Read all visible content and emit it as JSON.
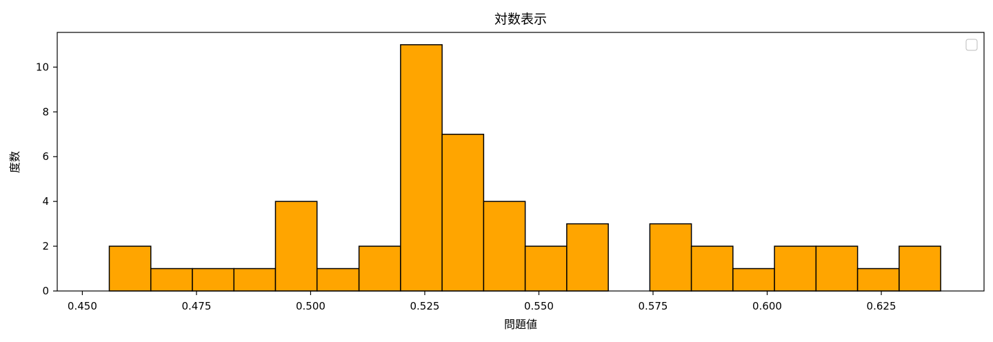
{
  "chart_data": {
    "type": "bar",
    "title": "対数表示",
    "xlabel": "問題値",
    "ylabel": "度数",
    "xlim": [
      0.4445,
      0.6475
    ],
    "ylim": [
      0,
      11.55
    ],
    "grid": false,
    "legend": {
      "placement": "top-right",
      "entries": []
    },
    "bar_color": "#FFA500",
    "edge_color": "#000000",
    "x_ticks": [
      0.45,
      0.475,
      0.5,
      0.525,
      0.55,
      0.575,
      0.6,
      0.625
    ],
    "x_tick_labels": [
      "0.450",
      "0.475",
      "0.500",
      "0.525",
      "0.550",
      "0.575",
      "0.600",
      "0.625"
    ],
    "y_ticks": [
      0,
      2,
      4,
      6,
      8,
      10
    ],
    "y_tick_labels": [
      "0",
      "2",
      "4",
      "6",
      "8",
      "10"
    ],
    "bin_edges": [
      0.4559,
      0.465,
      0.4741,
      0.4832,
      0.4923,
      0.5014,
      0.5106,
      0.5197,
      0.5288,
      0.5379,
      0.547,
      0.5561,
      0.5652,
      0.5743,
      0.5834,
      0.5925,
      0.6016,
      0.6107,
      0.6198,
      0.6289,
      0.638
    ],
    "values": [
      2,
      1,
      1,
      1,
      4,
      1,
      2,
      11,
      7,
      4,
      2,
      3,
      0,
      3,
      2,
      1,
      2,
      2,
      1,
      2
    ]
  }
}
